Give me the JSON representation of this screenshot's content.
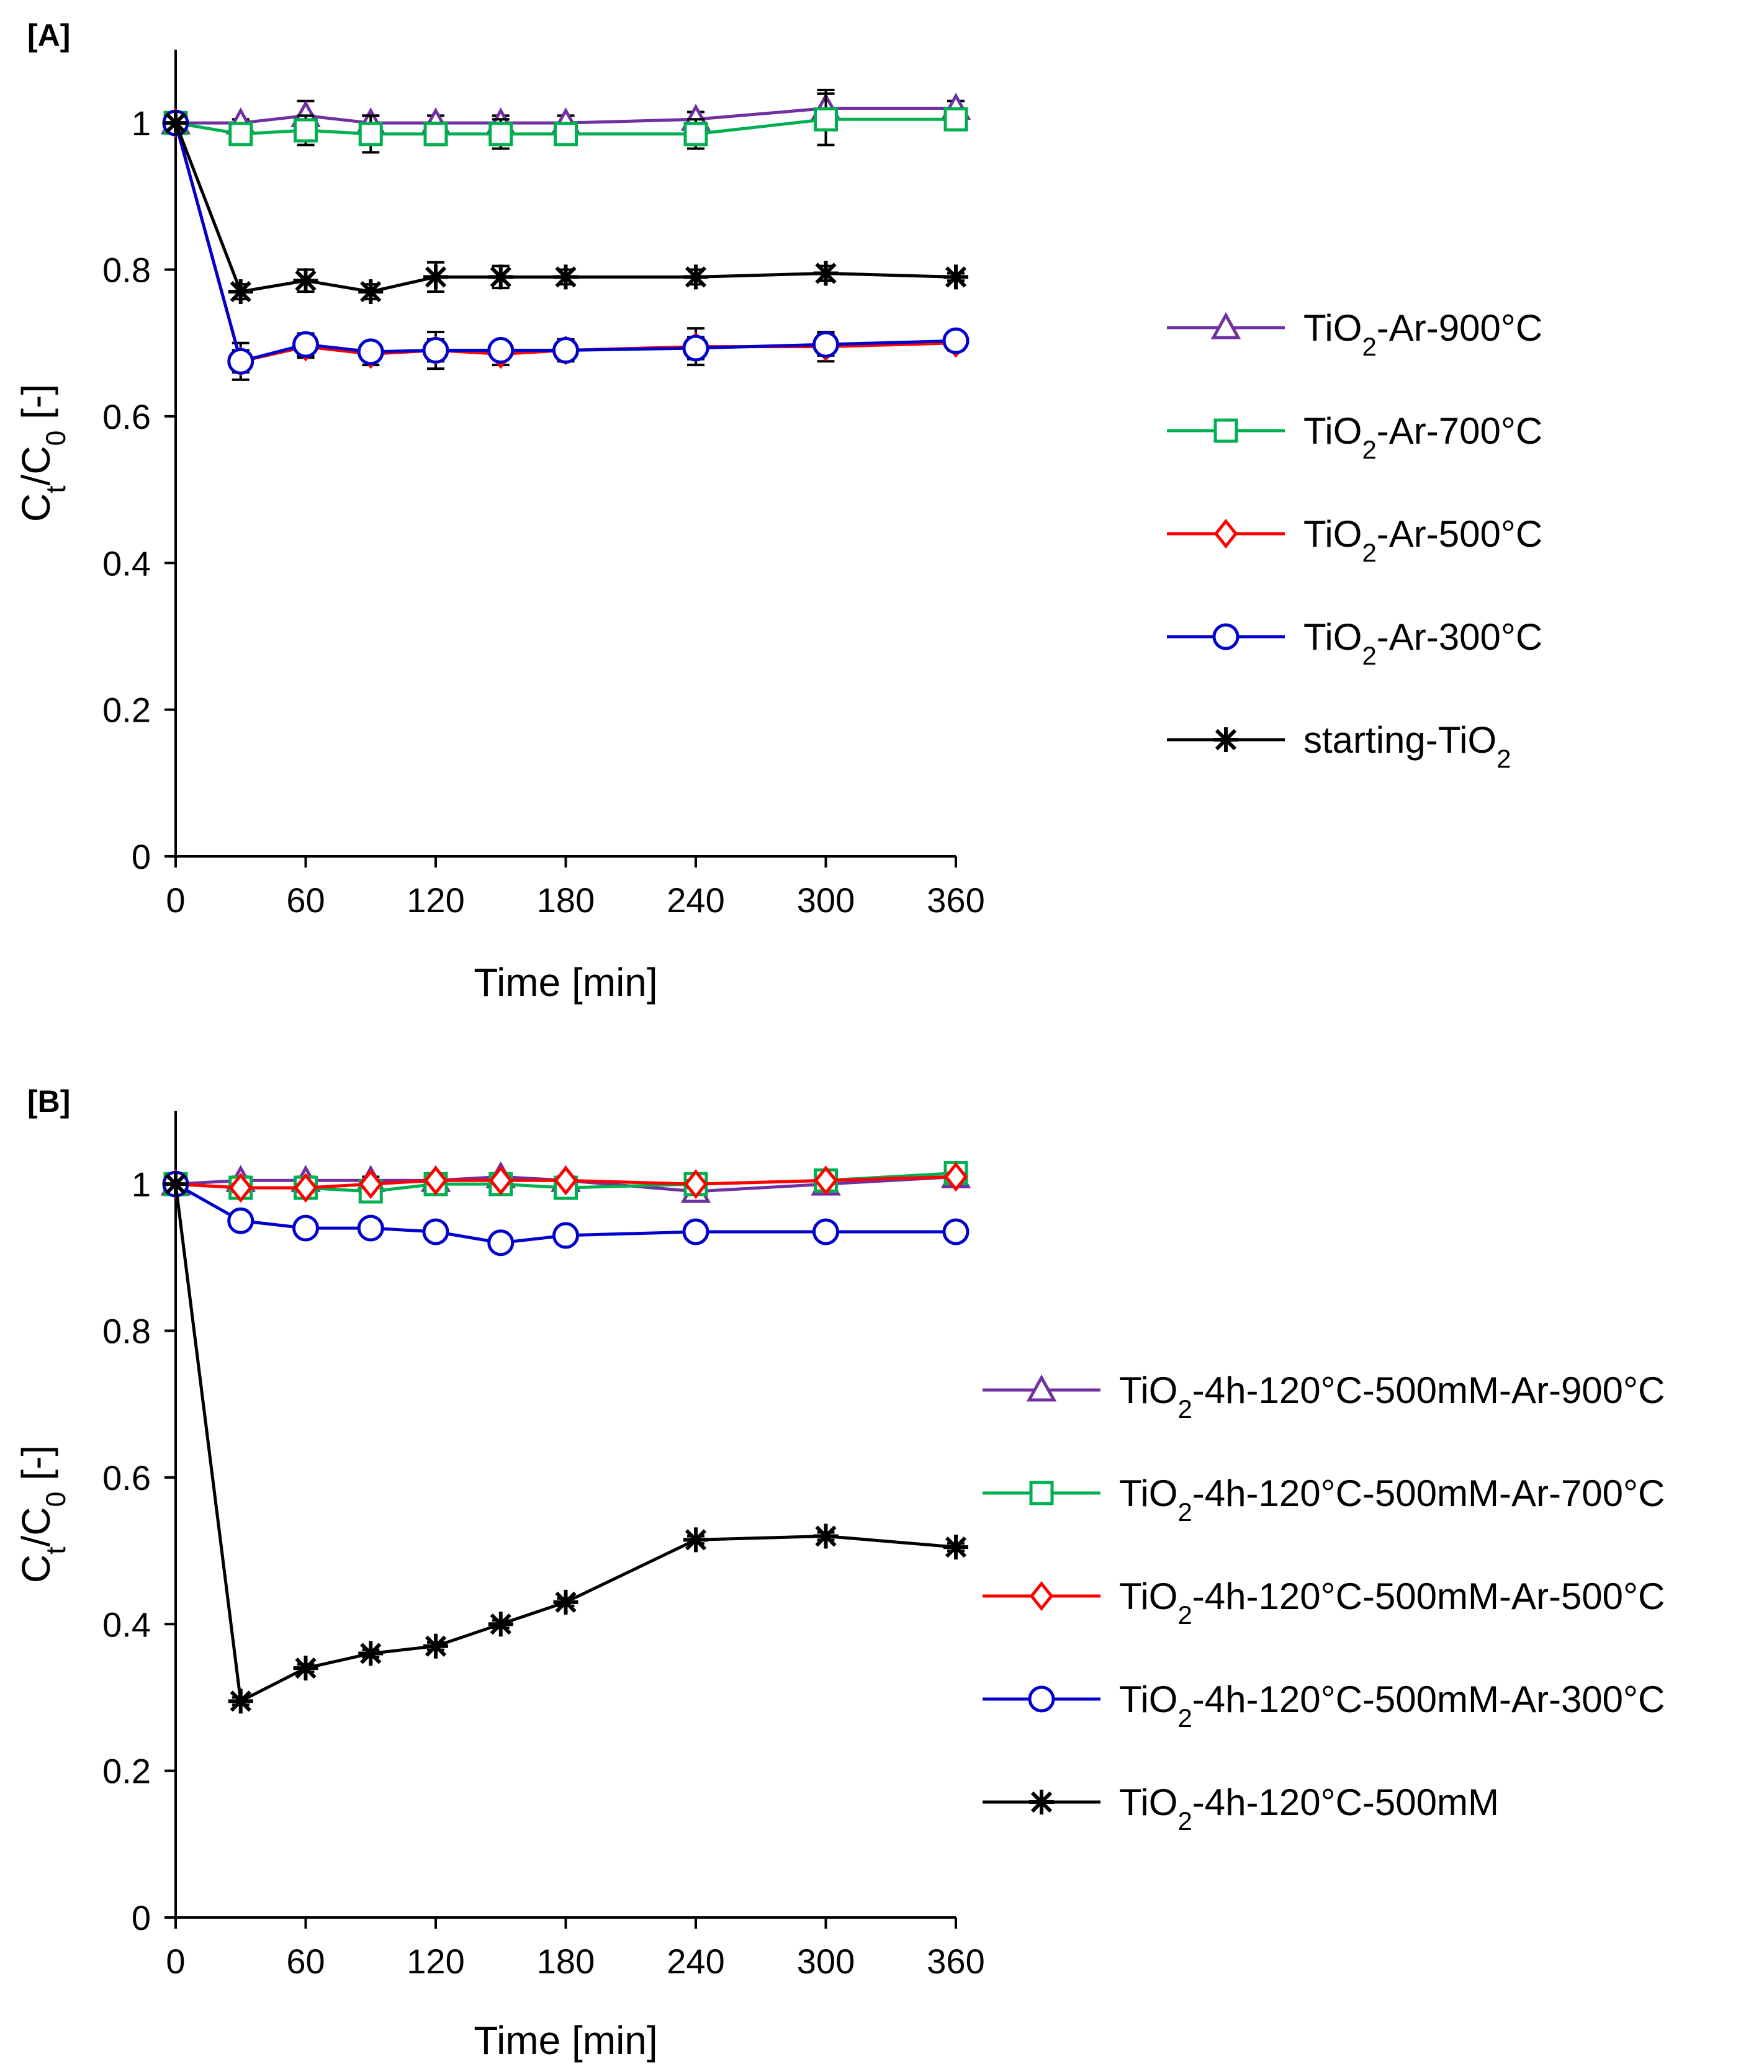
{
  "chart_data": [
    {
      "type": "line",
      "panel": "[A]",
      "xlabel": "Time [min]",
      "ylabel": {
        "main": "C",
        "sub1": "t",
        "mid": "/C",
        "sub2": "0",
        "tail": " [-]"
      },
      "xlim": [
        0,
        360
      ],
      "ylim": [
        0,
        1.1
      ],
      "xticks": [
        "0",
        "60",
        "120",
        "180",
        "240",
        "300",
        "360"
      ],
      "yticks": [
        "0",
        "0.2",
        "0.4",
        "0.6",
        "0.8",
        "1"
      ],
      "x": [
        0,
        30,
        60,
        90,
        120,
        150,
        180,
        240,
        300,
        360
      ],
      "legend_position": "right",
      "series": [
        {
          "name": {
            "pre": "TiO",
            "sub": "2",
            "post": "-Ar-900°C"
          },
          "color": "#7030a0",
          "marker": "triangle",
          "values": [
            1.0,
            1.0,
            1.01,
            1.0,
            1.0,
            1.0,
            1.0,
            1.005,
            1.02,
            1.02
          ],
          "errors": [
            0,
            0.005,
            0.02,
            0.01,
            0.01,
            0.01,
            0.01,
            0.01,
            0.025,
            0.01
          ]
        },
        {
          "name": {
            "pre": "TiO",
            "sub": "2",
            "post": "-Ar-700°C"
          },
          "color": "#00b050",
          "marker": "square",
          "values": [
            1.0,
            0.985,
            0.99,
            0.985,
            0.985,
            0.985,
            0.985,
            0.985,
            1.005,
            1.005
          ],
          "errors": [
            0,
            0.01,
            0.02,
            0.025,
            0.015,
            0.02,
            0.01,
            0.02,
            0.035,
            0.01
          ]
        },
        {
          "name": {
            "pre": "TiO",
            "sub": "2",
            "post": "-Ar-500°C"
          },
          "color": "#ff0000",
          "marker": "diamond",
          "values": [
            1.0,
            0.675,
            0.695,
            0.685,
            0.69,
            0.685,
            0.69,
            0.695,
            0.695,
            0.7
          ],
          "errors": [
            0,
            0.025,
            0.015,
            0.015,
            0.025,
            0.015,
            0.015,
            0.025,
            0.02,
            0.01
          ]
        },
        {
          "name": {
            "pre": "TiO",
            "sub": "2",
            "post": "-Ar-300°C"
          },
          "color": "#0000cc",
          "marker": "circle",
          "values": [
            1.0,
            0.675,
            0.698,
            0.688,
            0.69,
            0.69,
            0.69,
            0.693,
            0.698,
            0.703
          ],
          "errors": [
            0,
            0.015,
            0.015,
            0.01,
            0.015,
            0.01,
            0.01,
            0.015,
            0.015,
            0.01
          ]
        },
        {
          "name": {
            "pre": "starting-TiO",
            "sub": "2",
            "post": ""
          },
          "color": "#000000",
          "marker": "star",
          "values": [
            1.0,
            0.77,
            0.785,
            0.77,
            0.79,
            0.79,
            0.79,
            0.79,
            0.795,
            0.79
          ],
          "errors": [
            0,
            0.01,
            0.015,
            0.01,
            0.02,
            0.015,
            0.01,
            0.01,
            0.01,
            0.005
          ]
        }
      ]
    },
    {
      "type": "line",
      "panel": "[B]",
      "xlabel": "Time [min]",
      "ylabel": {
        "main": "C",
        "sub1": "t",
        "mid": "/C",
        "sub2": "0",
        "tail": " [-]"
      },
      "xlim": [
        0,
        360
      ],
      "ylim": [
        0,
        1.1
      ],
      "xticks": [
        "0",
        "60",
        "120",
        "180",
        "240",
        "300",
        "360"
      ],
      "yticks": [
        "0",
        "0.2",
        "0.4",
        "0.6",
        "0.8",
        "1"
      ],
      "x": [
        0,
        30,
        60,
        90,
        120,
        150,
        180,
        240,
        300,
        360
      ],
      "legend_position": "right",
      "series": [
        {
          "name": {
            "pre": "TiO",
            "sub": "2",
            "post": "-4h-120°C-500mM-Ar-900°C"
          },
          "color": "#7030a0",
          "marker": "triangle",
          "values": [
            1.0,
            1.005,
            1.005,
            1.005,
            1.005,
            1.01,
            1.005,
            0.99,
            1.0,
            1.01
          ],
          "errors": [
            0,
            0.005,
            0.005,
            0.005,
            0.005,
            0.005,
            0.005,
            0.005,
            0.005,
            0.005
          ]
        },
        {
          "name": {
            "pre": "TiO",
            "sub": "2",
            "post": "-4h-120°C-500mM-Ar-700°C"
          },
          "color": "#00b050",
          "marker": "square",
          "values": [
            1.0,
            0.995,
            0.995,
            0.99,
            1.0,
            1.0,
            0.995,
            1.0,
            1.005,
            1.015
          ],
          "errors": [
            0,
            0.005,
            0.005,
            0.005,
            0.005,
            0.005,
            0.005,
            0.005,
            0.005,
            0.01
          ]
        },
        {
          "name": {
            "pre": "TiO",
            "sub": "2",
            "post": "-4h-120°C-500mM-Ar-500°C"
          },
          "color": "#ff0000",
          "marker": "diamond",
          "values": [
            1.0,
            0.995,
            0.995,
            1.0,
            1.005,
            1.005,
            1.005,
            1.0,
            1.005,
            1.01
          ],
          "errors": [
            0,
            0.005,
            0.005,
            0.005,
            0.005,
            0.005,
            0.005,
            0.005,
            0.005,
            0.005
          ]
        },
        {
          "name": {
            "pre": "TiO",
            "sub": "2",
            "post": "-4h-120°C-500mM-Ar-300°C"
          },
          "color": "#0000cc",
          "marker": "circle",
          "values": [
            1.0,
            0.95,
            0.94,
            0.94,
            0.935,
            0.92,
            0.93,
            0.935,
            0.935,
            0.935
          ],
          "errors": [
            0,
            0.005,
            0.005,
            0.005,
            0.005,
            0.005,
            0.005,
            0.005,
            0.005,
            0.005
          ]
        },
        {
          "name": {
            "pre": "TiO",
            "sub": "2",
            "post": "-4h-120°C-500mM"
          },
          "color": "#000000",
          "marker": "star",
          "values": [
            1.0,
            0.295,
            0.34,
            0.36,
            0.37,
            0.4,
            0.43,
            0.515,
            0.52,
            0.505
          ],
          "errors": [
            0,
            0.005,
            0.005,
            0.005,
            0.005,
            0.005,
            0.005,
            0.005,
            0.005,
            0.005
          ]
        }
      ]
    }
  ]
}
